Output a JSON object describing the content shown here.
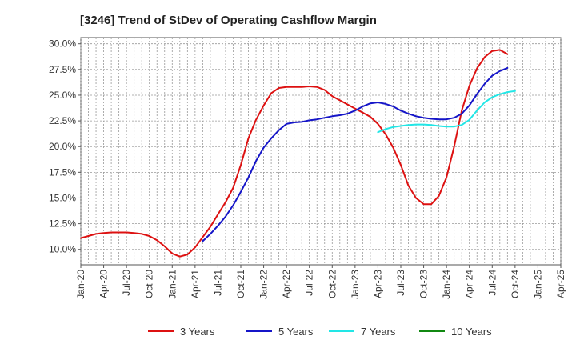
{
  "chart_data": {
    "type": "line",
    "title": "[3246]  Trend of StDev of Operating Cashflow Margin",
    "xlabel": "",
    "ylabel": "",
    "x_ticks": [
      "Jan-20",
      "Apr-20",
      "Jul-20",
      "Oct-20",
      "Jan-21",
      "Apr-21",
      "Jul-21",
      "Oct-21",
      "Jan-22",
      "Apr-22",
      "Jul-22",
      "Oct-22",
      "Jan-23",
      "Apr-23",
      "Jul-23",
      "Oct-23",
      "Jan-24",
      "Apr-24",
      "Jul-24",
      "Oct-24",
      "Jan-25",
      "Apr-25"
    ],
    "y_ticks": [
      "10.0%",
      "12.5%",
      "15.0%",
      "17.5%",
      "20.0%",
      "22.5%",
      "25.0%",
      "27.5%",
      "30.0%"
    ],
    "y_tick_values": [
      10.0,
      12.5,
      15.0,
      17.5,
      20.0,
      22.5,
      25.0,
      27.5,
      30.0
    ],
    "ylim": [
      8.5,
      30.6
    ],
    "grid": true,
    "legend_position": "bottom",
    "series": [
      {
        "name": "3 Years",
        "color": "#dd1111",
        "x": [
          0,
          1,
          2,
          3,
          4,
          5,
          6,
          7,
          8,
          9,
          10,
          11,
          12,
          13,
          14,
          15,
          16,
          17,
          18,
          19,
          20,
          21,
          22,
          23,
          24,
          25,
          26,
          27,
          28,
          29,
          30,
          31,
          32,
          33,
          34,
          35,
          36,
          37,
          38,
          39,
          40,
          41,
          42,
          43,
          44,
          45,
          46,
          47,
          48,
          49,
          50,
          51,
          52,
          53,
          54,
          55,
          56,
          57,
          58,
          59,
          60
        ],
        "y": [
          11.1,
          11.3,
          11.5,
          11.6,
          11.65,
          11.65,
          11.65,
          11.6,
          11.5,
          11.3,
          10.9,
          10.3,
          9.6,
          9.3,
          9.5,
          10.2,
          11.2,
          12.2,
          13.4,
          14.6,
          16.0,
          18.2,
          20.8,
          22.6,
          24.0,
          25.2,
          25.7,
          25.8,
          25.8,
          25.8,
          25.85,
          25.8,
          25.5,
          24.9,
          24.5,
          24.1,
          23.7,
          23.3,
          22.9,
          22.2,
          21.2,
          19.9,
          18.2,
          16.2,
          15.0,
          14.4,
          14.4,
          15.2,
          17.0,
          20.0,
          23.5,
          25.9,
          27.6,
          28.7,
          29.3,
          29.4,
          29.0,
          null,
          null,
          null,
          null
        ]
      },
      {
        "name": "5 Years",
        "color": "#1515c8",
        "x": [
          16,
          17,
          18,
          19,
          20,
          21,
          22,
          23,
          24,
          25,
          26,
          27,
          28,
          29,
          30,
          31,
          32,
          33,
          34,
          35,
          36,
          37,
          38,
          39,
          40,
          41,
          42,
          43,
          44,
          45,
          46,
          47,
          48,
          49,
          50,
          51,
          52,
          53,
          54,
          55,
          56
        ],
        "y": [
          10.8,
          11.5,
          12.3,
          13.2,
          14.3,
          15.6,
          17.0,
          18.6,
          19.9,
          20.8,
          21.6,
          22.2,
          22.35,
          22.4,
          22.55,
          22.65,
          22.8,
          22.95,
          23.05,
          23.2,
          23.5,
          23.9,
          24.2,
          24.3,
          24.15,
          23.9,
          23.5,
          23.2,
          22.95,
          22.8,
          22.7,
          22.65,
          22.65,
          22.8,
          23.2,
          24.0,
          25.1,
          26.1,
          26.9,
          27.35,
          27.65
        ]
      },
      {
        "name": "7 Years",
        "color": "#22e6e6",
        "x": [
          39,
          40,
          41,
          42,
          43,
          44,
          45,
          46,
          47,
          48,
          49,
          50,
          51,
          52,
          53,
          54,
          55,
          56,
          57,
          58
        ],
        "y": [
          21.4,
          21.7,
          21.9,
          22.0,
          22.1,
          22.15,
          22.15,
          22.1,
          22.0,
          21.95,
          21.95,
          22.1,
          22.6,
          23.5,
          24.3,
          24.8,
          25.1,
          25.3,
          25.4,
          null
        ]
      },
      {
        "name": "10 Years",
        "color": "#118811",
        "x": [],
        "y": []
      }
    ]
  }
}
